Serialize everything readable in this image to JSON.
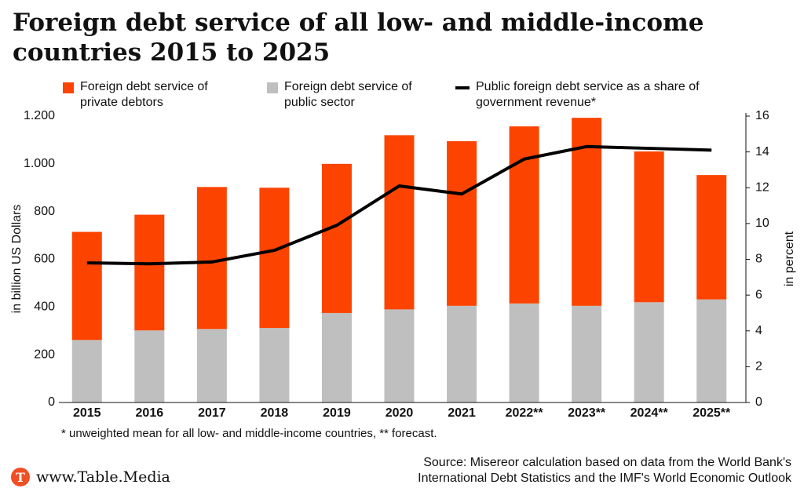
{
  "chart_data": {
    "type": "bar",
    "title": "Foreign debt service of all low- and middle-income countries 2015 to 2025",
    "categories": [
      "2015",
      "2016",
      "2017",
      "2018",
      "2019",
      "2020",
      "2021",
      "2022**",
      "2023**",
      "2024**",
      "2025**"
    ],
    "series": [
      {
        "name": "Foreign debt service of private debtors",
        "color": "#fc4400",
        "type": "bar",
        "values": [
          453,
          485,
          595,
          588,
          625,
          730,
          690,
          742,
          788,
          632,
          521
        ]
      },
      {
        "name": "Foreign debt service of public sector",
        "color": "#bfbfbf",
        "type": "bar",
        "values": [
          262,
          302,
          308,
          312,
          375,
          390,
          405,
          415,
          405,
          420,
          432
        ]
      },
      {
        "name": "Public foreign debt service as a share of government revenue*",
        "color": "#000000",
        "type": "line",
        "axis": "y2",
        "values": [
          7.8,
          7.75,
          7.85,
          8.5,
          9.9,
          12.1,
          11.65,
          13.6,
          14.3,
          14.2,
          14.1
        ]
      }
    ],
    "ylabel": "in billion US Dollars",
    "y2label": "in percent",
    "ylim": [
      0,
      1200
    ],
    "yticks": [
      0,
      200,
      400,
      600,
      800,
      {
        "value": 1000,
        "label": "1.000"
      },
      {
        "value": 1200,
        "label": "1.200"
      }
    ],
    "y2lim": [
      0,
      16
    ],
    "y2ticks": [
      0,
      2,
      4,
      6,
      8,
      10,
      12,
      14,
      16
    ],
    "stacked": true,
    "note": "* unweighted mean for all low- and middle-income countries, ** forecast.",
    "source": "Source: Misereor calculation based on data from the World Bank's International Debt Statistics and the IMF's World Economic Outlook",
    "brand": "www.Table.Media"
  }
}
